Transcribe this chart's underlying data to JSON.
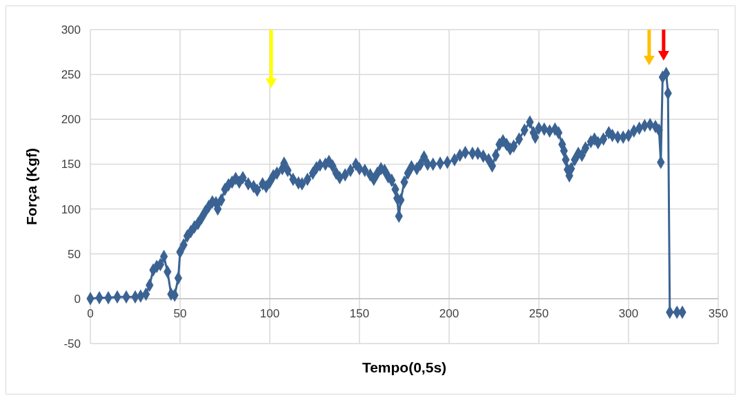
{
  "chart_data": {
    "type": "line",
    "xlabel": "Tempo(0,5s)",
    "ylabel": "Força (Kgf)",
    "xlim": [
      0,
      350
    ],
    "ylim": [
      -50,
      300
    ],
    "xticks": [
      0,
      50,
      100,
      150,
      200,
      250,
      300,
      350
    ],
    "yticks": [
      -50,
      0,
      50,
      100,
      150,
      200,
      250,
      300
    ],
    "grid": true,
    "marker": "diamond",
    "line_style": "solid",
    "series": [
      {
        "color": "#3a6393",
        "x": [
          0,
          5,
          10,
          15,
          20,
          25,
          28,
          31,
          33,
          35,
          37,
          39,
          41,
          43,
          45,
          47,
          49,
          50,
          52,
          54,
          56,
          58,
          60,
          62,
          64,
          66,
          68,
          70,
          71,
          73,
          75,
          77,
          79,
          81,
          83,
          85,
          88,
          91,
          93,
          96,
          98,
          100,
          102,
          104,
          107,
          108,
          110,
          113,
          116,
          118,
          121,
          124,
          126,
          128,
          131,
          133,
          135,
          137,
          139,
          142,
          145,
          148,
          150,
          153,
          156,
          158,
          160,
          162,
          164,
          166,
          168,
          170,
          171,
          172,
          173,
          175,
          177,
          179,
          182,
          184,
          186,
          188,
          191,
          195,
          199,
          203,
          206,
          209,
          213,
          216,
          219,
          222,
          224,
          226,
          228,
          230,
          232,
          234,
          236,
          239,
          242,
          245,
          247,
          248,
          250,
          253,
          256,
          259,
          261,
          263,
          264,
          265,
          266,
          267,
          268,
          270,
          272,
          274,
          276,
          279,
          281,
          283,
          286,
          289,
          291,
          294,
          297,
          300,
          303,
          306,
          309,
          312,
          315,
          317,
          318,
          319,
          321,
          322,
          323,
          327,
          330
        ],
        "values": [
          0,
          1,
          1,
          2,
          2,
          2,
          3,
          5,
          15,
          32,
          36,
          38,
          47,
          30,
          5,
          4,
          23,
          52,
          60,
          70,
          75,
          80,
          84,
          90,
          97,
          103,
          108,
          107,
          100,
          110,
          122,
          127,
          130,
          134,
          130,
          135,
          128,
          125,
          121,
          128,
          125,
          130,
          137,
          140,
          145,
          151,
          143,
          133,
          129,
          128,
          133,
          140,
          146,
          149,
          150,
          153,
          148,
          140,
          135,
          138,
          143,
          150,
          145,
          143,
          138,
          133,
          140,
          145,
          143,
          136,
          132,
          122,
          112,
          92,
          110,
          130,
          140,
          147,
          145,
          150,
          158,
          150,
          150,
          151,
          152,
          155,
          160,
          163,
          162,
          162,
          159,
          155,
          148,
          160,
          172,
          176,
          172,
          167,
          170,
          178,
          188,
          197,
          185,
          180,
          190,
          189,
          187,
          189,
          185,
          172,
          165,
          155,
          144,
          137,
          145,
          155,
          162,
          160,
          168,
          175,
          178,
          174,
          178,
          185,
          182,
          180,
          180,
          182,
          187,
          190,
          193,
          194,
          192,
          188,
          152,
          247,
          251,
          229,
          -15,
          -15,
          -15
        ]
      }
    ]
  }
}
